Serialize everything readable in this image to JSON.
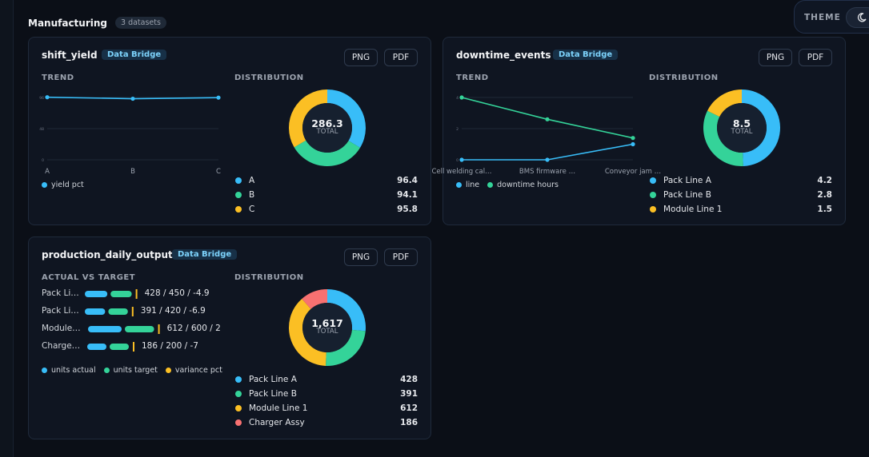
{
  "section": {
    "title": "Manufacturing",
    "count_label": "3 datasets"
  },
  "theme": {
    "label": "THEME"
  },
  "cards": [
    {
      "title": "shift_yield",
      "source": "Data Bridge",
      "png_label": "PNG",
      "pdf_label": "PDF",
      "trend_label": "TREND",
      "dist_label": "DISTRIBUTION",
      "total": "286.3",
      "total_caption": "TOTAL",
      "legend": [
        {
          "name": "yield pct",
          "color": "#38bdf8"
        }
      ],
      "distribution": [
        {
          "label": "A",
          "value": "96.4",
          "color": "#38bdf8"
        },
        {
          "label": "B",
          "value": "94.1",
          "color": "#34d399"
        },
        {
          "label": "C",
          "value": "95.8",
          "color": "#fbbf24"
        }
      ]
    },
    {
      "title": "downtime_events",
      "source": "Data Bridge",
      "png_label": "PNG",
      "pdf_label": "PDF",
      "trend_label": "TREND",
      "dist_label": "DISTRIBUTION",
      "total": "8.5",
      "total_caption": "TOTAL",
      "legend": [
        {
          "name": "line",
          "color": "#38bdf8"
        },
        {
          "name": "downtime hours",
          "color": "#34d399"
        }
      ],
      "distribution": [
        {
          "label": "Pack Line A",
          "value": "4.2",
          "color": "#38bdf8"
        },
        {
          "label": "Pack Line B",
          "value": "2.8",
          "color": "#34d399"
        },
        {
          "label": "Module Line 1",
          "value": "1.5",
          "color": "#fbbf24"
        }
      ]
    },
    {
      "title": "production_daily_output",
      "source": "Data Bridge",
      "png_label": "PNG",
      "pdf_label": "PDF",
      "avt_label": "ACTUAL VS TARGET",
      "dist_label": "DISTRIBUTION",
      "total": "1,617",
      "total_caption": "TOTAL",
      "rows": [
        {
          "label": "Pack Li…",
          "actual": 428,
          "target": 450,
          "variance": -4.9,
          "value_text": "428 / 450 / -4.9"
        },
        {
          "label": "Pack Li…",
          "actual": 391,
          "target": 420,
          "variance": -6.9,
          "value_text": "391 / 420 / -6.9"
        },
        {
          "label": "Module…",
          "actual": 612,
          "target": 600,
          "variance": 2,
          "value_text": "612 / 600 / 2"
        },
        {
          "label": "Charge…",
          "actual": 186,
          "target": 200,
          "variance": -7,
          "value_text": "186 / 200 / -7"
        }
      ],
      "legend": [
        {
          "name": "units actual",
          "color": "#38bdf8"
        },
        {
          "name": "units target",
          "color": "#34d399"
        },
        {
          "name": "variance pct",
          "color": "#fbbf24"
        }
      ],
      "distribution": [
        {
          "label": "Pack Line A",
          "value": "428",
          "color": "#38bdf8"
        },
        {
          "label": "Pack Line B",
          "value": "391",
          "color": "#34d399"
        },
        {
          "label": "Module Line 1",
          "value": "612",
          "color": "#fbbf24"
        },
        {
          "label": "Charger Assy",
          "value": "186",
          "color": "#f87171"
        }
      ]
    }
  ],
  "chart_data": [
    {
      "type": "line",
      "categories": [
        "A",
        "B",
        "C"
      ],
      "series": [
        {
          "name": "yield pct",
          "values": [
            96.4,
            94.1,
            95.8
          ],
          "color": "#38bdf8"
        }
      ],
      "yticks": [
        "0",
        "48",
        "96"
      ],
      "ylim": [
        0,
        96
      ]
    },
    {
      "type": "pie",
      "labels": [
        "A",
        "B",
        "C"
      ],
      "values": [
        96.4,
        94.1,
        95.8
      ],
      "colors": [
        "#38bdf8",
        "#34d399",
        "#fbbf24"
      ]
    },
    {
      "type": "line",
      "categories": [
        "Cell welding cal…",
        "BMS firmware …",
        "Conveyor jam …"
      ],
      "series": [
        {
          "name": "line",
          "values": [
            0,
            0,
            1
          ],
          "color": "#38bdf8"
        },
        {
          "name": "downtime hours",
          "values": [
            4,
            2.6,
            1.4
          ],
          "color": "#34d399"
        }
      ],
      "yticks": [
        "0",
        "2",
        "4"
      ],
      "ylim": [
        0,
        4
      ]
    },
    {
      "type": "pie",
      "labels": [
        "Pack Line A",
        "Pack Line B",
        "Module Line 1"
      ],
      "values": [
        4.2,
        2.8,
        1.5
      ],
      "colors": [
        "#38bdf8",
        "#34d399",
        "#fbbf24"
      ]
    },
    {
      "type": "bar",
      "categories": [
        "Pack Line A",
        "Pack Line B",
        "Module Line 1",
        "Charger Assy"
      ],
      "series": [
        {
          "name": "units actual",
          "values": [
            428,
            391,
            612,
            186
          ],
          "color": "#38bdf8"
        },
        {
          "name": "units target",
          "values": [
            450,
            420,
            600,
            200
          ],
          "color": "#34d399"
        },
        {
          "name": "variance pct",
          "values": [
            -4.9,
            -6.9,
            2,
            -7
          ],
          "color": "#fbbf24"
        }
      ]
    },
    {
      "type": "pie",
      "labels": [
        "Pack Line A",
        "Pack Line B",
        "Module Line 1",
        "Charger Assy"
      ],
      "values": [
        428,
        391,
        612,
        186
      ],
      "colors": [
        "#38bdf8",
        "#34d399",
        "#fbbf24",
        "#f87171"
      ]
    }
  ]
}
